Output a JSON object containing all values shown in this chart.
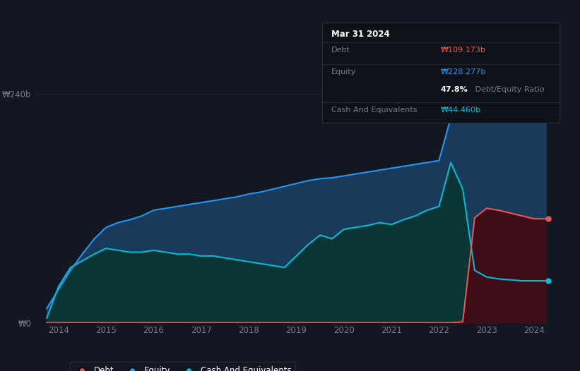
{
  "background_color": "#131722",
  "tooltip_bg": "#131722",
  "tooltip_border": "#2a2e39",
  "equity_color": "#2196f3",
  "debt_color": "#ef5350",
  "cash_color": "#00bcd4",
  "equity_fill": "#1565c0",
  "cash_fill": "#004d4d",
  "debt_fill": "#4a0010",
  "grid_color": "#1e2230",
  "tick_color": "#787b86",
  "tooltip": {
    "date": "Mar 31 2024",
    "debt_label": "Debt",
    "debt_value": "₩109.173b",
    "equity_label": "Equity",
    "equity_value": "₩228.277b",
    "ratio_pct": "47.8%",
    "ratio_text": " Debt/Equity Ratio",
    "cash_label": "Cash And Equivalents",
    "cash_value": "₩44.460b"
  },
  "ylim": [
    0,
    280
  ],
  "xlim": [
    2013.5,
    2024.6
  ],
  "xticks": [
    2014,
    2015,
    2016,
    2017,
    2018,
    2019,
    2020,
    2021,
    2022,
    2023,
    2024
  ],
  "ytick_positions": [
    0,
    240
  ],
  "ytick_labels": [
    "₩0",
    "₩240b"
  ],
  "years": [
    2013.75,
    2014.0,
    2014.25,
    2014.5,
    2014.75,
    2015.0,
    2015.25,
    2015.5,
    2015.75,
    2016.0,
    2016.25,
    2016.5,
    2016.75,
    2017.0,
    2017.25,
    2017.5,
    2017.75,
    2018.0,
    2018.25,
    2018.5,
    2018.75,
    2019.0,
    2019.25,
    2019.5,
    2019.75,
    2020.0,
    2020.25,
    2020.5,
    2020.75,
    2021.0,
    2021.25,
    2021.5,
    2021.75,
    2022.0,
    2022.25,
    2022.5,
    2022.75,
    2023.0,
    2023.25,
    2023.5,
    2023.75,
    2024.0,
    2024.25
  ],
  "equity": [
    15,
    35,
    55,
    72,
    88,
    100,
    105,
    108,
    112,
    118,
    120,
    122,
    124,
    126,
    128,
    130,
    132,
    135,
    137,
    140,
    143,
    146,
    149,
    151,
    152,
    154,
    156,
    158,
    160,
    162,
    164,
    166,
    168,
    170,
    215,
    228,
    230,
    232,
    233,
    233,
    232,
    228,
    228
  ],
  "debt": [
    0,
    0,
    0,
    0,
    0,
    0,
    0,
    0,
    0,
    0,
    0,
    0,
    0,
    0,
    0,
    0,
    0,
    0,
    0,
    0,
    0,
    0,
    0,
    0,
    0,
    0,
    0,
    0,
    0,
    0,
    0,
    0,
    0,
    0,
    0,
    1,
    110,
    120,
    118,
    115,
    112,
    109,
    109
  ],
  "cash": [
    5,
    38,
    58,
    65,
    72,
    78,
    76,
    74,
    74,
    76,
    74,
    72,
    72,
    70,
    70,
    68,
    66,
    64,
    62,
    60,
    58,
    70,
    82,
    92,
    88,
    98,
    100,
    102,
    105,
    103,
    108,
    112,
    118,
    122,
    168,
    140,
    55,
    48,
    46,
    45,
    44,
    44,
    44
  ],
  "legend": [
    {
      "label": "Debt",
      "color": "#ef5350"
    },
    {
      "label": "Equity",
      "color": "#2196f3"
    },
    {
      "label": "Cash And Equivalents",
      "color": "#00bcd4"
    }
  ]
}
